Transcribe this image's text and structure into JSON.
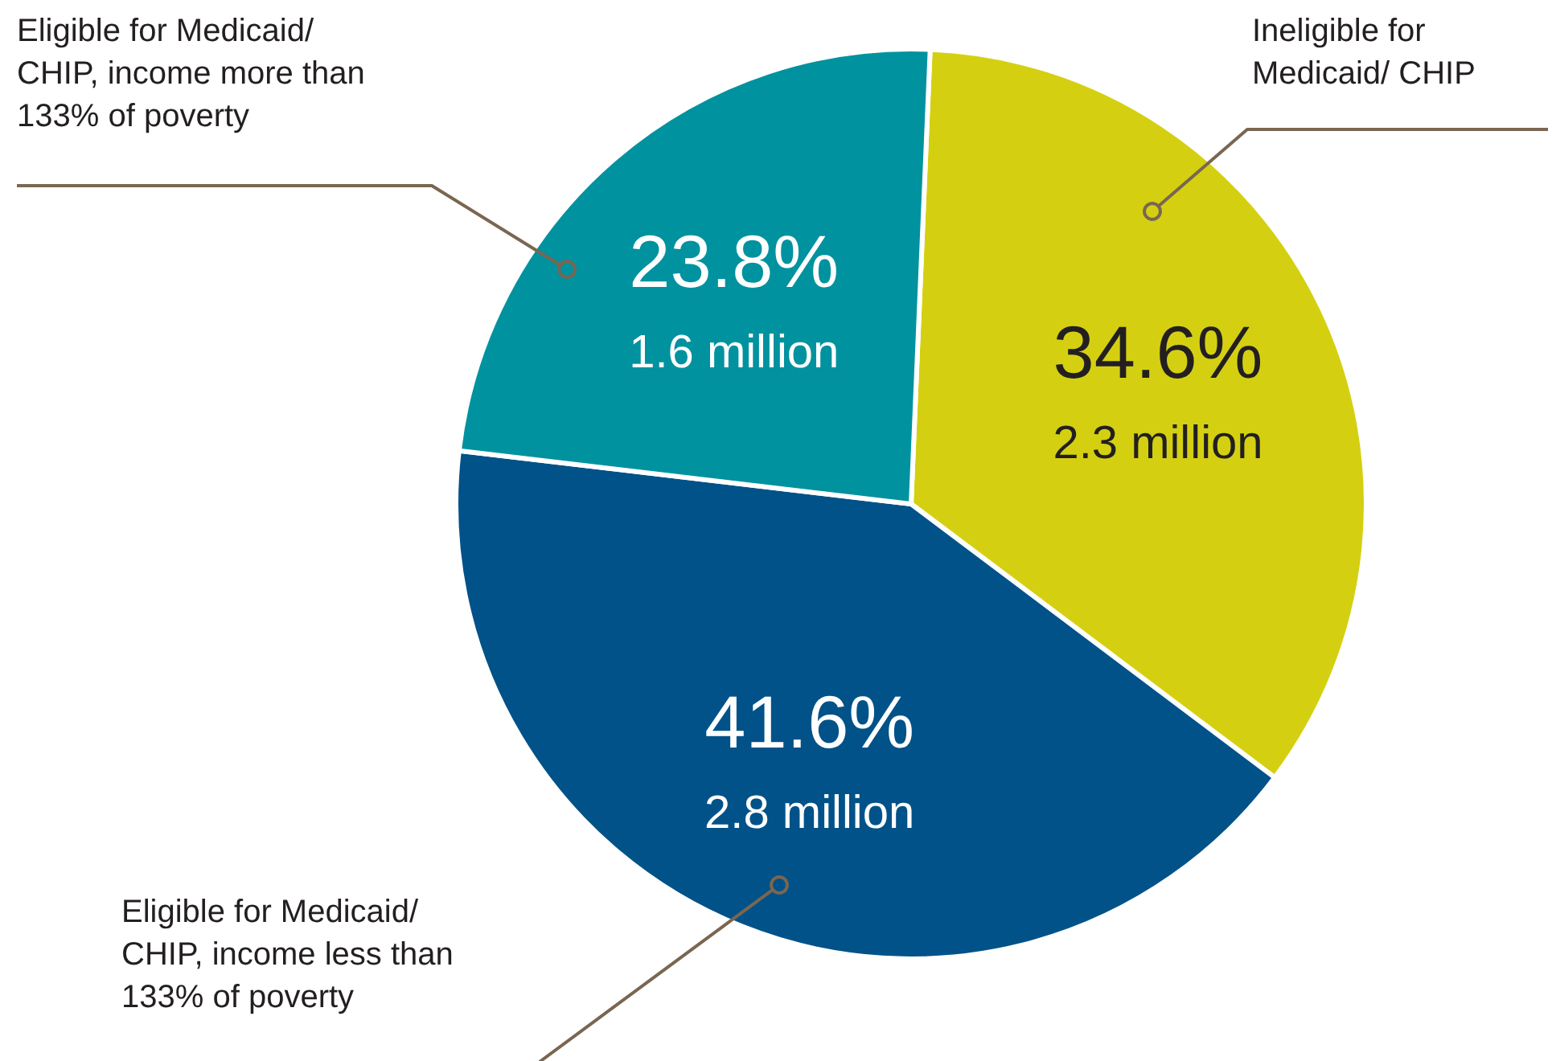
{
  "chart_data": {
    "type": "pie",
    "categories": [
      "Ineligible for\nMedicaid/ CHIP",
      "Eligible for Medicaid/\nCHIP, income less than\n133% of poverty",
      "Eligible for Medicaid/\nCHIP, income more than\n133% of poverty"
    ],
    "values": [
      34.6,
      41.6,
      23.8
    ],
    "colors": [
      "#d4d011",
      "#005288",
      "#00929f"
    ],
    "value_labels": [
      "34.6%\n2.3 million",
      "41.6%\n2.8 million",
      "23.8%\n1.6 million"
    ]
  }
}
